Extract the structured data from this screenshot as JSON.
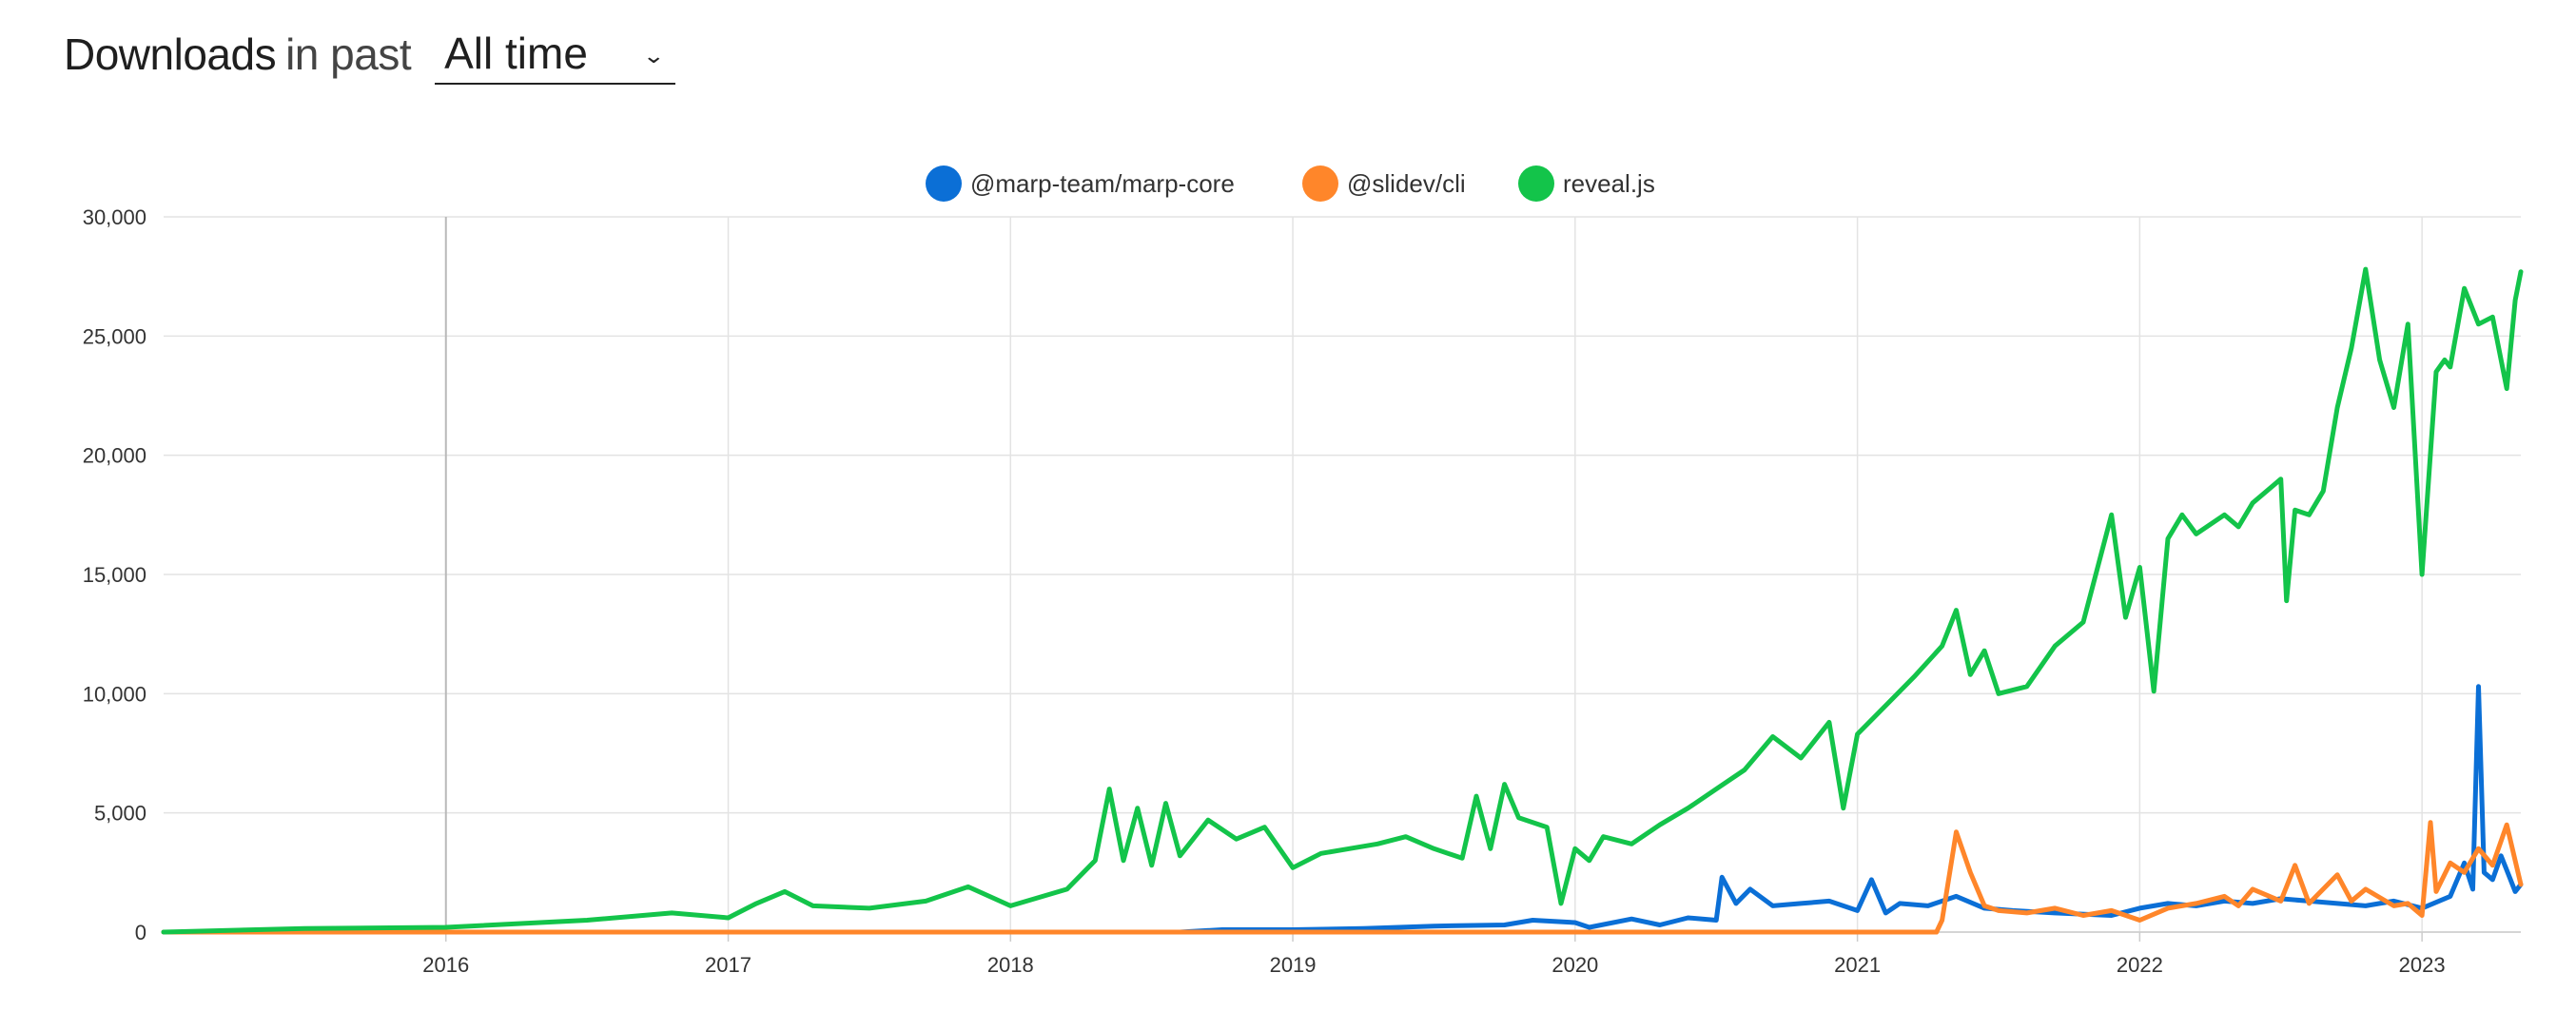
{
  "header": {
    "title_strong": "Downloads",
    "title_light": "in past",
    "range_selected": "All time",
    "range_icon": "chevron-down-icon"
  },
  "chart_data": {
    "type": "line",
    "title": "",
    "xlabel": "",
    "ylabel": "",
    "x_range": [
      2015.0,
      2023.35
    ],
    "ylim": [
      0,
      30000
    ],
    "y_ticks": [
      0,
      5000,
      10000,
      15000,
      20000,
      25000,
      30000
    ],
    "y_tick_labels": [
      "0",
      "5,000",
      "10,000",
      "15,000",
      "20,000",
      "25,000",
      "30,000"
    ],
    "x_ticks": [
      2016,
      2017,
      2018,
      2019,
      2020,
      2021,
      2022,
      2023
    ],
    "x_tick_labels": [
      "2016",
      "2017",
      "2018",
      "2019",
      "2020",
      "2021",
      "2022",
      "2023"
    ],
    "grid": true,
    "legend_position": "top-center",
    "series": [
      {
        "name": "@marp-team/marp-core",
        "color": "#0b6fd6",
        "x": [
          2015.0,
          2018.6,
          2018.75,
          2019.0,
          2019.25,
          2019.5,
          2019.75,
          2019.85,
          2020.0,
          2020.05,
          2020.2,
          2020.3,
          2020.4,
          2020.5,
          2020.52,
          2020.57,
          2020.62,
          2020.7,
          2020.8,
          2020.9,
          2021.0,
          2021.05,
          2021.1,
          2021.15,
          2021.25,
          2021.35,
          2021.45,
          2021.55,
          2021.7,
          2021.9,
          2022.0,
          2022.1,
          2022.2,
          2022.3,
          2022.4,
          2022.5,
          2022.6,
          2022.7,
          2022.8,
          2022.9,
          2023.0,
          2023.1,
          2023.15,
          2023.18,
          2023.2,
          2023.22,
          2023.25,
          2023.28,
          2023.3,
          2023.33,
          2023.35
        ],
        "y": [
          0,
          0,
          100,
          100,
          150,
          250,
          300,
          500,
          400,
          200,
          550,
          300,
          600,
          500,
          2300,
          1200,
          1800,
          1100,
          1200,
          1300,
          900,
          2200,
          800,
          1200,
          1100,
          1500,
          1000,
          900,
          800,
          700,
          1000,
          1200,
          1100,
          1300,
          1200,
          1400,
          1300,
          1200,
          1100,
          1300,
          1000,
          1500,
          2900,
          1800,
          10300,
          2500,
          2200,
          3200,
          2600,
          1700,
          2000
        ]
      },
      {
        "name": "@slidev/cli",
        "color": "#ff862a",
        "x": [
          2015.0,
          2021.28,
          2021.3,
          2021.35,
          2021.4,
          2021.45,
          2021.5,
          2021.6,
          2021.7,
          2021.8,
          2021.9,
          2022.0,
          2022.1,
          2022.2,
          2022.3,
          2022.35,
          2022.4,
          2022.5,
          2022.55,
          2022.6,
          2022.7,
          2022.75,
          2022.8,
          2022.9,
          2022.95,
          2023.0,
          2023.03,
          2023.05,
          2023.1,
          2023.15,
          2023.2,
          2023.25,
          2023.3,
          2023.35
        ],
        "y": [
          0,
          0,
          500,
          4200,
          2500,
          1100,
          900,
          800,
          1000,
          700,
          900,
          500,
          1000,
          1200,
          1500,
          1100,
          1800,
          1300,
          2800,
          1200,
          2400,
          1300,
          1800,
          1100,
          1200,
          700,
          4600,
          1700,
          2900,
          2500,
          3500,
          2800,
          4500,
          2000
        ]
      },
      {
        "name": "reveal.js",
        "color": "#13c44a",
        "x": [
          2015.0,
          2015.5,
          2016.0,
          2016.5,
          2016.8,
          2017.0,
          2017.1,
          2017.2,
          2017.3,
          2017.5,
          2017.7,
          2017.85,
          2018.0,
          2018.2,
          2018.3,
          2018.35,
          2018.4,
          2018.45,
          2018.5,
          2018.55,
          2018.6,
          2018.7,
          2018.8,
          2018.9,
          2019.0,
          2019.1,
          2019.2,
          2019.3,
          2019.4,
          2019.5,
          2019.6,
          2019.65,
          2019.7,
          2019.75,
          2019.8,
          2019.9,
          2019.95,
          2020.0,
          2020.05,
          2020.1,
          2020.2,
          2020.3,
          2020.4,
          2020.5,
          2020.6,
          2020.7,
          2020.8,
          2020.9,
          2020.95,
          2021.0,
          2021.1,
          2021.2,
          2021.3,
          2021.35,
          2021.4,
          2021.45,
          2021.5,
          2021.6,
          2021.7,
          2021.8,
          2021.9,
          2021.95,
          2022.0,
          2022.05,
          2022.1,
          2022.15,
          2022.2,
          2022.3,
          2022.35,
          2022.4,
          2022.5,
          2022.52,
          2022.55,
          2022.6,
          2022.65,
          2022.7,
          2022.75,
          2022.8,
          2022.85,
          2022.9,
          2022.95,
          2023.0,
          2023.05,
          2023.08,
          2023.1,
          2023.15,
          2023.2,
          2023.25,
          2023.3,
          2023.33,
          2023.35
        ],
        "y": [
          0,
          150,
          200,
          500,
          800,
          600,
          1200,
          1700,
          1100,
          1000,
          1300,
          1900,
          1100,
          1800,
          3000,
          6000,
          3000,
          5200,
          2800,
          5400,
          3200,
          4700,
          3900,
          4400,
          2700,
          3300,
          3500,
          3700,
          4000,
          3500,
          3100,
          5700,
          3500,
          6200,
          4800,
          4400,
          1200,
          3500,
          3000,
          4000,
          3700,
          4500,
          5200,
          6000,
          6800,
          8200,
          7300,
          8800,
          5200,
          8300,
          9500,
          10700,
          12000,
          13500,
          10800,
          11800,
          10000,
          10300,
          12000,
          13000,
          17500,
          13200,
          15300,
          10100,
          16500,
          17500,
          16700,
          17500,
          17000,
          18000,
          19000,
          13900,
          17700,
          17500,
          18500,
          22000,
          24500,
          27800,
          24000,
          22000,
          25500,
          15000,
          23500,
          24000,
          23700,
          27000,
          25500,
          25800,
          22800,
          26500,
          27700
        ]
      }
    ]
  }
}
